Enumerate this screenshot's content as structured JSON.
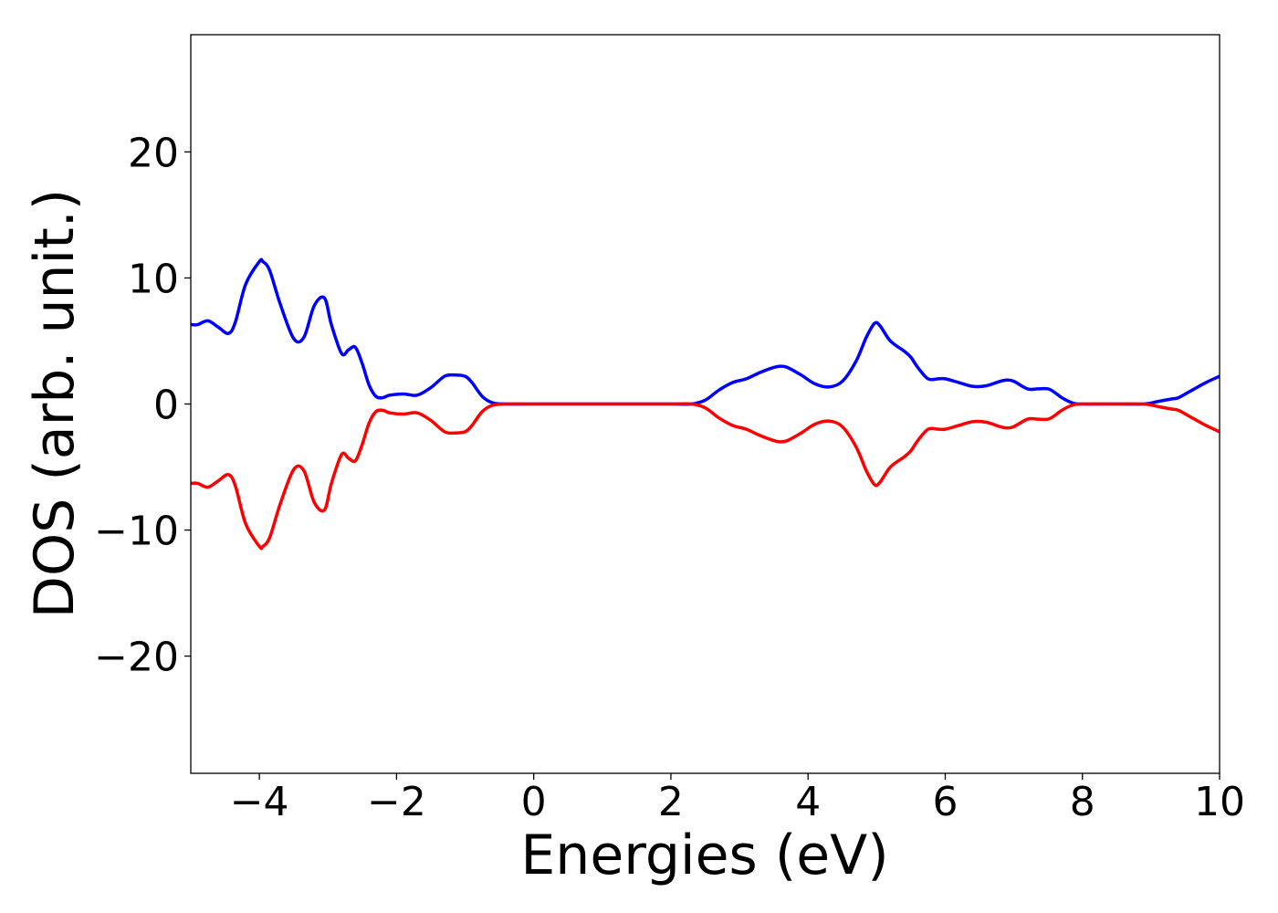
{
  "chart_data": {
    "type": "line",
    "title": "",
    "xlabel": "Energies (eV)",
    "ylabel": "DOS (arb. unit.)",
    "xlim": [
      -5,
      10
    ],
    "ylim": [
      -29.3,
      29.3
    ],
    "xticks": [
      {
        "value": -4,
        "label": "−4"
      },
      {
        "value": -2,
        "label": "−2"
      },
      {
        "value": 0,
        "label": "0"
      },
      {
        "value": 2,
        "label": "2"
      },
      {
        "value": 4,
        "label": "4"
      },
      {
        "value": 6,
        "label": "6"
      },
      {
        "value": 8,
        "label": "8"
      },
      {
        "value": 10,
        "label": "10"
      }
    ],
    "yticks": [
      {
        "value": 20,
        "label": "20"
      },
      {
        "value": 10,
        "label": "10"
      },
      {
        "value": 0,
        "label": "0"
      },
      {
        "value": -10,
        "label": "−10"
      },
      {
        "value": -20,
        "label": "−20"
      }
    ],
    "grid": false,
    "legend": "none",
    "series": [
      {
        "color": "#0000ff",
        "x": [
          -5.0,
          -4.9,
          -4.75,
          -4.6,
          -4.45,
          -4.35,
          -4.2,
          -4.0,
          -3.95,
          -3.85,
          -3.7,
          -3.5,
          -3.35,
          -3.2,
          -3.05,
          -2.95,
          -2.8,
          -2.7,
          -2.6,
          -2.5,
          -2.4,
          -2.3,
          -2.2,
          -2.1,
          -1.9,
          -1.7,
          -1.5,
          -1.3,
          -1.15,
          -1.0,
          -0.9,
          -0.75,
          -0.6,
          -0.4,
          0.0,
          1.0,
          2.0,
          2.3,
          2.5,
          2.7,
          2.9,
          3.1,
          3.3,
          3.5,
          3.6,
          3.7,
          3.9,
          4.1,
          4.3,
          4.5,
          4.7,
          4.85,
          4.97,
          5.05,
          5.2,
          5.4,
          5.5,
          5.6,
          5.75,
          5.9,
          6.0,
          6.2,
          6.4,
          6.6,
          6.8,
          6.9,
          7.0,
          7.2,
          7.35,
          7.5,
          7.6,
          7.7,
          7.85,
          8.0,
          8.5,
          8.9,
          9.1,
          9.3,
          9.4,
          9.6,
          9.8,
          10.0
        ],
        "y": [
          6.3,
          6.3,
          6.6,
          6.1,
          5.6,
          6.5,
          9.5,
          11.3,
          11.3,
          10.6,
          8.0,
          5.2,
          5.3,
          7.8,
          8.4,
          6.3,
          4.0,
          4.3,
          4.5,
          3.2,
          1.5,
          0.6,
          0.5,
          0.7,
          0.8,
          0.7,
          1.3,
          2.2,
          2.3,
          2.2,
          1.7,
          0.6,
          0.1,
          0.0,
          0.0,
          0.0,
          0.0,
          0.0,
          0.3,
          1.1,
          1.7,
          2.0,
          2.5,
          2.9,
          3.0,
          2.9,
          2.3,
          1.6,
          1.35,
          1.8,
          3.4,
          5.3,
          6.4,
          6.2,
          5.0,
          4.2,
          3.7,
          2.9,
          2.0,
          2.0,
          2.0,
          1.7,
          1.4,
          1.45,
          1.8,
          1.9,
          1.8,
          1.2,
          1.2,
          1.2,
          0.9,
          0.5,
          0.1,
          0.0,
          0.0,
          0.0,
          0.2,
          0.4,
          0.5,
          1.1,
          1.7,
          2.2
        ]
      },
      {
        "color": "#ff0000",
        "x": [
          -5.0,
          -4.9,
          -4.75,
          -4.6,
          -4.45,
          -4.35,
          -4.2,
          -4.0,
          -3.95,
          -3.85,
          -3.7,
          -3.5,
          -3.35,
          -3.2,
          -3.05,
          -2.95,
          -2.8,
          -2.7,
          -2.6,
          -2.5,
          -2.4,
          -2.3,
          -2.2,
          -2.1,
          -1.9,
          -1.7,
          -1.5,
          -1.3,
          -1.15,
          -1.0,
          -0.9,
          -0.75,
          -0.6,
          -0.4,
          0.0,
          1.0,
          2.0,
          2.3,
          2.5,
          2.7,
          2.9,
          3.1,
          3.3,
          3.5,
          3.6,
          3.7,
          3.9,
          4.1,
          4.3,
          4.5,
          4.7,
          4.85,
          4.97,
          5.05,
          5.2,
          5.4,
          5.5,
          5.6,
          5.75,
          5.9,
          6.0,
          6.2,
          6.4,
          6.6,
          6.8,
          6.9,
          7.0,
          7.2,
          7.35,
          7.5,
          7.6,
          7.7,
          7.85,
          8.0,
          8.5,
          8.9,
          9.1,
          9.3,
          9.4,
          9.6,
          9.8,
          10.0
        ],
        "y": [
          -6.3,
          -6.3,
          -6.6,
          -6.1,
          -5.6,
          -6.5,
          -9.5,
          -11.3,
          -11.3,
          -10.6,
          -8.0,
          -5.2,
          -5.3,
          -7.8,
          -8.4,
          -6.3,
          -4.0,
          -4.3,
          -4.5,
          -3.2,
          -1.5,
          -0.6,
          -0.5,
          -0.7,
          -0.8,
          -0.7,
          -1.3,
          -2.2,
          -2.3,
          -2.2,
          -1.7,
          -0.6,
          -0.1,
          0.0,
          0.0,
          0.0,
          0.0,
          0.0,
          -0.3,
          -1.1,
          -1.7,
          -2.0,
          -2.5,
          -2.9,
          -3.0,
          -2.9,
          -2.3,
          -1.6,
          -1.35,
          -1.8,
          -3.4,
          -5.3,
          -6.4,
          -6.2,
          -5.0,
          -4.2,
          -3.7,
          -2.9,
          -2.0,
          -2.0,
          -2.0,
          -1.7,
          -1.4,
          -1.45,
          -1.8,
          -1.9,
          -1.8,
          -1.2,
          -1.2,
          -1.2,
          -0.9,
          -0.5,
          -0.1,
          0.0,
          0.0,
          0.0,
          -0.2,
          -0.4,
          -0.5,
          -1.1,
          -1.7,
          -2.2
        ]
      }
    ]
  }
}
